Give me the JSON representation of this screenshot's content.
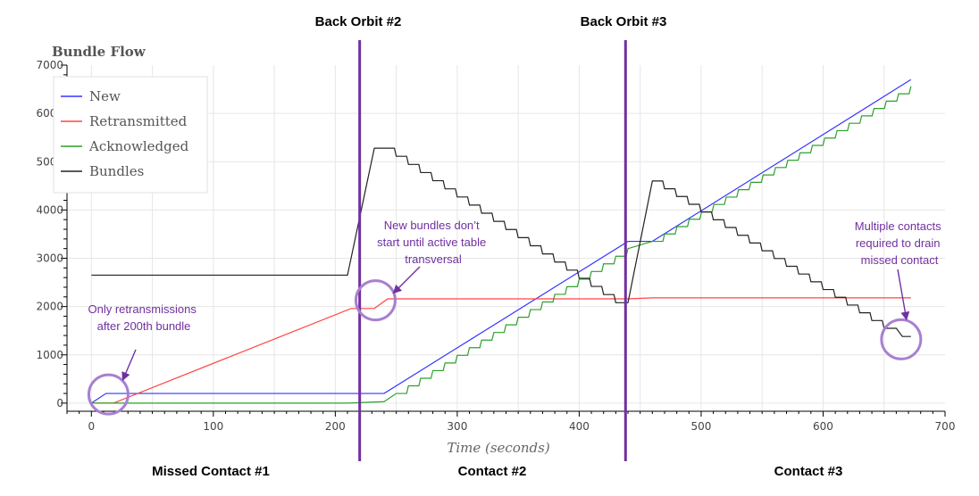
{
  "chart_data": {
    "type": "line",
    "title": "Bundle Flow",
    "xlabel": "Time (seconds)",
    "ylabel": "",
    "xlim": [
      -20,
      700
    ],
    "ylim": [
      -150,
      7000
    ],
    "xticks": [
      0,
      100,
      200,
      300,
      400,
      500,
      600,
      700
    ],
    "yticks": [
      0,
      1000,
      2000,
      3000,
      4000,
      5000,
      6000,
      7000
    ],
    "grid": true,
    "legend_position": "top-left",
    "series": [
      {
        "name": "New",
        "color": "#3333ff",
        "points": [
          [
            0,
            0
          ],
          [
            12,
            200
          ],
          [
            240,
            200
          ],
          [
            440,
            3350
          ],
          [
            460,
            3350
          ],
          [
            672,
            6700
          ]
        ]
      },
      {
        "name": "Retransmitted",
        "color": "#ff4444",
        "points": [
          [
            0,
            0
          ],
          [
            18,
            0
          ],
          [
            213,
            1960
          ],
          [
            232,
            1960
          ],
          [
            243,
            2160
          ],
          [
            440,
            2160
          ],
          [
            460,
            2180
          ],
          [
            672,
            2180
          ]
        ]
      },
      {
        "name": "Acknowledged",
        "color": "#2ca02c",
        "stepped": true,
        "points": [
          [
            0,
            0
          ],
          [
            210,
            0
          ],
          [
            240,
            30
          ],
          [
            250,
            200
          ],
          [
            440,
            3200
          ],
          [
            460,
            3350
          ],
          [
            672,
            6560
          ]
        ]
      },
      {
        "name": "Bundles",
        "color": "#222222",
        "points": [
          [
            0,
            2650
          ],
          [
            210,
            2650
          ],
          [
            232,
            5280
          ],
          [
            240,
            5280
          ],
          [
            430,
            2080
          ],
          [
            440,
            2080
          ],
          [
            460,
            4600
          ],
          [
            650,
            1550
          ],
          [
            660,
            1550
          ],
          [
            665,
            1380
          ],
          [
            672,
            1380
          ]
        ]
      }
    ],
    "annotations": [
      {
        "text": "Back Orbit #2",
        "kind": "vline",
        "x": 220
      },
      {
        "text": "Back Orbit #3",
        "kind": "vline",
        "x": 438
      },
      {
        "text_lines": [
          "Only retransmissions",
          "after 200th bundle"
        ],
        "circle_at": [
          14,
          180
        ]
      },
      {
        "text_lines": [
          "New bundles don’t",
          "start until active table",
          "transversal"
        ],
        "circle_at": [
          233,
          2130
        ]
      },
      {
        "text_lines": [
          "Multiple contacts",
          "required to drain",
          "missed contact"
        ],
        "circle_at": [
          664,
          1320
        ]
      }
    ],
    "region_labels": [
      "Missed Contact #1",
      "Contact #2",
      "Contact #3"
    ]
  }
}
